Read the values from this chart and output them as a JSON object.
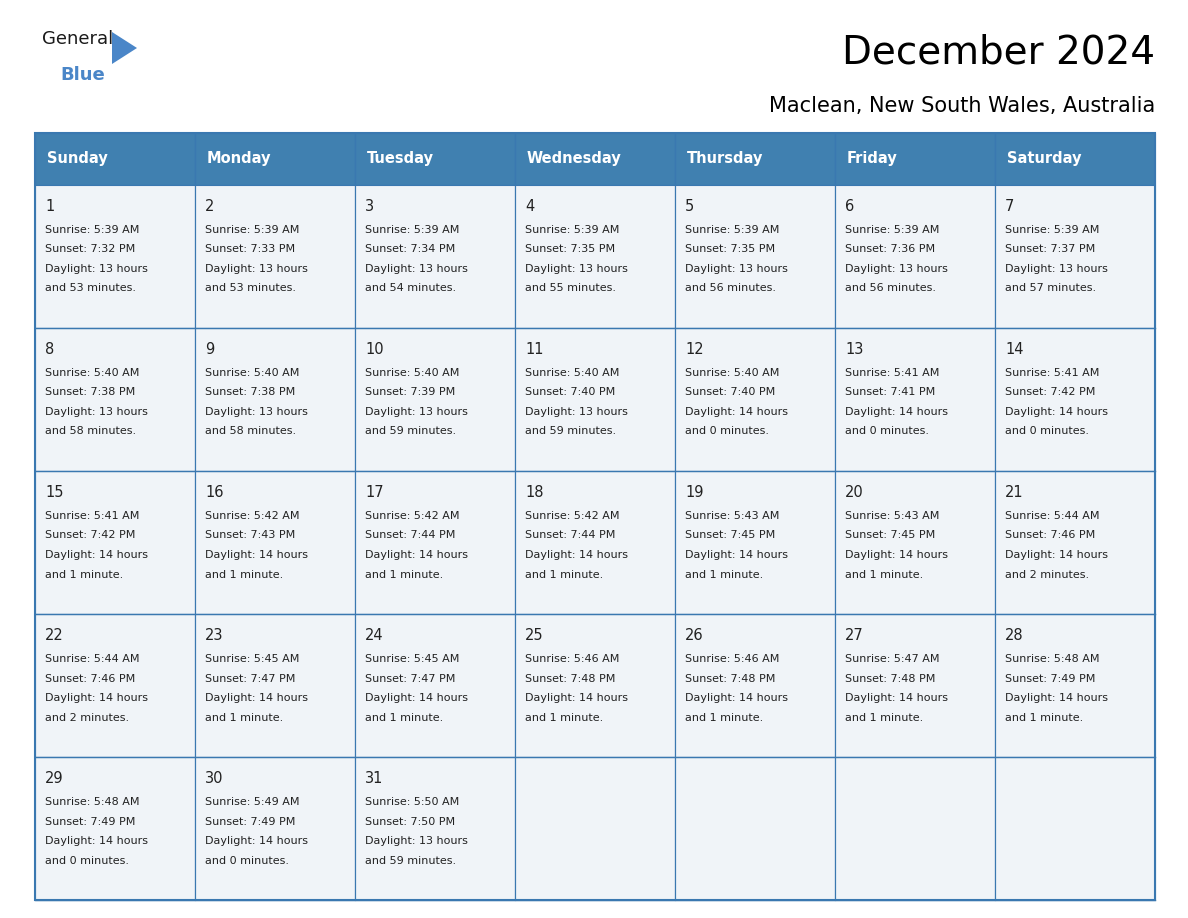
{
  "title": "December 2024",
  "subtitle": "Maclean, New South Wales, Australia",
  "header_bg_color": "#4080b0",
  "header_text_color": "#ffffff",
  "cell_bg_odd": "#f0f4f8",
  "cell_bg_even": "#ffffff",
  "border_color": "#3a78b0",
  "text_color": "#222222",
  "day_num_color": "#333333",
  "days_of_week": [
    "Sunday",
    "Monday",
    "Tuesday",
    "Wednesday",
    "Thursday",
    "Friday",
    "Saturday"
  ],
  "weeks": [
    [
      {
        "day": 1,
        "sunrise": "5:39 AM",
        "sunset": "7:32 PM",
        "dl1": "Daylight: 13 hours",
        "dl2": "and 53 minutes."
      },
      {
        "day": 2,
        "sunrise": "5:39 AM",
        "sunset": "7:33 PM",
        "dl1": "Daylight: 13 hours",
        "dl2": "and 53 minutes."
      },
      {
        "day": 3,
        "sunrise": "5:39 AM",
        "sunset": "7:34 PM",
        "dl1": "Daylight: 13 hours",
        "dl2": "and 54 minutes."
      },
      {
        "day": 4,
        "sunrise": "5:39 AM",
        "sunset": "7:35 PM",
        "dl1": "Daylight: 13 hours",
        "dl2": "and 55 minutes."
      },
      {
        "day": 5,
        "sunrise": "5:39 AM",
        "sunset": "7:35 PM",
        "dl1": "Daylight: 13 hours",
        "dl2": "and 56 minutes."
      },
      {
        "day": 6,
        "sunrise": "5:39 AM",
        "sunset": "7:36 PM",
        "dl1": "Daylight: 13 hours",
        "dl2": "and 56 minutes."
      },
      {
        "day": 7,
        "sunrise": "5:39 AM",
        "sunset": "7:37 PM",
        "dl1": "Daylight: 13 hours",
        "dl2": "and 57 minutes."
      }
    ],
    [
      {
        "day": 8,
        "sunrise": "5:40 AM",
        "sunset": "7:38 PM",
        "dl1": "Daylight: 13 hours",
        "dl2": "and 58 minutes."
      },
      {
        "day": 9,
        "sunrise": "5:40 AM",
        "sunset": "7:38 PM",
        "dl1": "Daylight: 13 hours",
        "dl2": "and 58 minutes."
      },
      {
        "day": 10,
        "sunrise": "5:40 AM",
        "sunset": "7:39 PM",
        "dl1": "Daylight: 13 hours",
        "dl2": "and 59 minutes."
      },
      {
        "day": 11,
        "sunrise": "5:40 AM",
        "sunset": "7:40 PM",
        "dl1": "Daylight: 13 hours",
        "dl2": "and 59 minutes."
      },
      {
        "day": 12,
        "sunrise": "5:40 AM",
        "sunset": "7:40 PM",
        "dl1": "Daylight: 14 hours",
        "dl2": "and 0 minutes."
      },
      {
        "day": 13,
        "sunrise": "5:41 AM",
        "sunset": "7:41 PM",
        "dl1": "Daylight: 14 hours",
        "dl2": "and 0 minutes."
      },
      {
        "day": 14,
        "sunrise": "5:41 AM",
        "sunset": "7:42 PM",
        "dl1": "Daylight: 14 hours",
        "dl2": "and 0 minutes."
      }
    ],
    [
      {
        "day": 15,
        "sunrise": "5:41 AM",
        "sunset": "7:42 PM",
        "dl1": "Daylight: 14 hours",
        "dl2": "and 1 minute."
      },
      {
        "day": 16,
        "sunrise": "5:42 AM",
        "sunset": "7:43 PM",
        "dl1": "Daylight: 14 hours",
        "dl2": "and 1 minute."
      },
      {
        "day": 17,
        "sunrise": "5:42 AM",
        "sunset": "7:44 PM",
        "dl1": "Daylight: 14 hours",
        "dl2": "and 1 minute."
      },
      {
        "day": 18,
        "sunrise": "5:42 AM",
        "sunset": "7:44 PM",
        "dl1": "Daylight: 14 hours",
        "dl2": "and 1 minute."
      },
      {
        "day": 19,
        "sunrise": "5:43 AM",
        "sunset": "7:45 PM",
        "dl1": "Daylight: 14 hours",
        "dl2": "and 1 minute."
      },
      {
        "day": 20,
        "sunrise": "5:43 AM",
        "sunset": "7:45 PM",
        "dl1": "Daylight: 14 hours",
        "dl2": "and 1 minute."
      },
      {
        "day": 21,
        "sunrise": "5:44 AM",
        "sunset": "7:46 PM",
        "dl1": "Daylight: 14 hours",
        "dl2": "and 2 minutes."
      }
    ],
    [
      {
        "day": 22,
        "sunrise": "5:44 AM",
        "sunset": "7:46 PM",
        "dl1": "Daylight: 14 hours",
        "dl2": "and 2 minutes."
      },
      {
        "day": 23,
        "sunrise": "5:45 AM",
        "sunset": "7:47 PM",
        "dl1": "Daylight: 14 hours",
        "dl2": "and 1 minute."
      },
      {
        "day": 24,
        "sunrise": "5:45 AM",
        "sunset": "7:47 PM",
        "dl1": "Daylight: 14 hours",
        "dl2": "and 1 minute."
      },
      {
        "day": 25,
        "sunrise": "5:46 AM",
        "sunset": "7:48 PM",
        "dl1": "Daylight: 14 hours",
        "dl2": "and 1 minute."
      },
      {
        "day": 26,
        "sunrise": "5:46 AM",
        "sunset": "7:48 PM",
        "dl1": "Daylight: 14 hours",
        "dl2": "and 1 minute."
      },
      {
        "day": 27,
        "sunrise": "5:47 AM",
        "sunset": "7:48 PM",
        "dl1": "Daylight: 14 hours",
        "dl2": "and 1 minute."
      },
      {
        "day": 28,
        "sunrise": "5:48 AM",
        "sunset": "7:49 PM",
        "dl1": "Daylight: 14 hours",
        "dl2": "and 1 minute."
      }
    ],
    [
      {
        "day": 29,
        "sunrise": "5:48 AM",
        "sunset": "7:49 PM",
        "dl1": "Daylight: 14 hours",
        "dl2": "and 0 minutes."
      },
      {
        "day": 30,
        "sunrise": "5:49 AM",
        "sunset": "7:49 PM",
        "dl1": "Daylight: 14 hours",
        "dl2": "and 0 minutes."
      },
      {
        "day": 31,
        "sunrise": "5:50 AM",
        "sunset": "7:50 PM",
        "dl1": "Daylight: 13 hours",
        "dl2": "and 59 minutes."
      },
      null,
      null,
      null,
      null
    ]
  ]
}
